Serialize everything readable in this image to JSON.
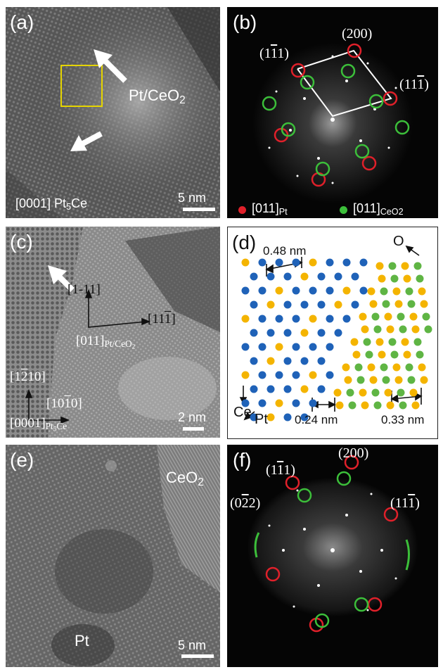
{
  "colors": {
    "pt_spot": "#e0202a",
    "ceo2_spot": "#3cbf3a",
    "pt_atom": "#1f62b8",
    "ce_atom": "#f4b400",
    "o_atom": "#5fb544",
    "roi_box": "#e5d400"
  },
  "a": {
    "letter": "(a)",
    "region": "Pt/CeO",
    "region_sub": "2",
    "zone_pre": "[0001] Pt",
    "zone_sub": "5",
    "zone_post": "Ce",
    "scale": "5 nm",
    "arrows": [
      "white-arrow-icon",
      "white-arrow-icon"
    ]
  },
  "b": {
    "letter": "(b)",
    "spots": {
      "s200": "(200)",
      "s1m11_pre": "(1",
      "s1m11_bar": "1",
      "s1m11_post": "1)",
      "s11m1_pre": "(11",
      "s11m1_bar": "1",
      "s11m1_post": ")"
    },
    "legend": {
      "pt_pre": "[011]",
      "pt_sub": "Pt",
      "ceo2_pre": "[011]",
      "ceo2_sub": "CeO",
      "ceo2_sub2": "2"
    }
  },
  "c": {
    "letter": "(c)",
    "dir1": "[1-11]",
    "dir2_pre": "[11",
    "dir2_bar": "1",
    "dir2_post": "]",
    "zone1_pre": "[011]",
    "zone1_sub": "Pt/CeO",
    "zone1_sub2": "2",
    "dir3_pre": "[1",
    "dir3_bar": "2",
    "dir3_post": "10]",
    "dir4_pre": "[10",
    "dir4_bar": "1",
    "dir4_post": "0]",
    "zone2_pre": "[0001]",
    "zone2_sub": "Pt",
    "zone2_sub2": "5",
    "zone2_post": "Ce",
    "scale": "2 nm"
  },
  "d": {
    "letter": "(d)",
    "d1": "0.48 nm",
    "d2": "0.24 nm",
    "d3": "0.33 nm",
    "o": "O",
    "ce": "Ce",
    "pt": "Pt"
  },
  "e": {
    "letter": "(e)",
    "ceo2": "CeO",
    "ceo2_sub": "2",
    "pt": "Pt",
    "scale": "5 nm"
  },
  "f": {
    "letter": "(f)",
    "s200": "(200)",
    "s1m11_pre": "(1",
    "s1m11_bar": "1",
    "s1m11_post": "1)",
    "s0m22_pre": "(0",
    "s0m22_bar": "2",
    "s0m22_post": "2)",
    "s11m1_pre": "(11",
    "s11m1_bar": "1",
    "s11m1_post": ")"
  }
}
